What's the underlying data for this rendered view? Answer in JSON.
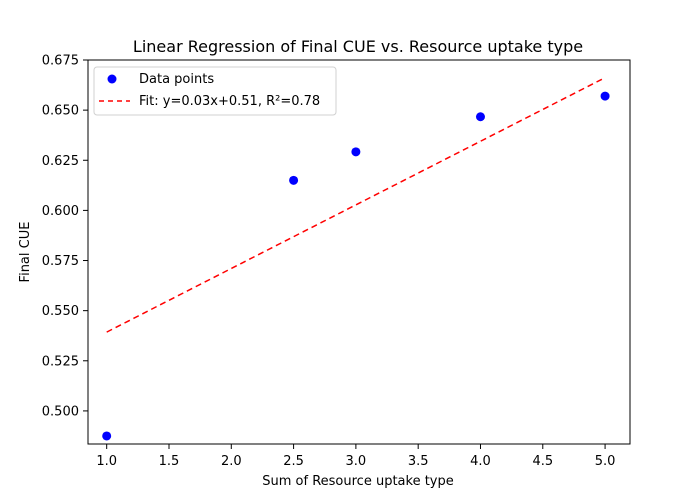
{
  "chart_data": {
    "type": "scatter",
    "title": "Linear Regression of Final CUE vs. Resource uptake type",
    "xlabel": "Sum of Resource uptake type",
    "ylabel": "Final CUE",
    "xlim": [
      0.85,
      5.2
    ],
    "ylim": [
      0.4835,
      0.675
    ],
    "xticks": [
      1.0,
      1.5,
      2.0,
      2.5,
      3.0,
      3.5,
      4.0,
      4.5,
      5.0
    ],
    "xtick_labels": [
      "1.0",
      "1.5",
      "2.0",
      "2.5",
      "3.0",
      "3.5",
      "4.0",
      "4.5",
      "5.0"
    ],
    "yticks": [
      0.5,
      0.525,
      0.55,
      0.575,
      0.6,
      0.625,
      0.65,
      0.675
    ],
    "ytick_labels": [
      "0.500",
      "0.525",
      "0.550",
      "0.575",
      "0.600",
      "0.625",
      "0.650",
      "0.675"
    ],
    "grid": false,
    "legend_placement": "top-left",
    "series": [
      {
        "name": "Data points",
        "kind": "scatter",
        "color": "#0000ff",
        "points": [
          {
            "x": 1.0,
            "y": 0.4875
          },
          {
            "x": 2.5,
            "y": 0.615
          },
          {
            "x": 3.0,
            "y": 0.6292
          },
          {
            "x": 4.0,
            "y": 0.6467
          },
          {
            "x": 5.0,
            "y": 0.657
          }
        ]
      },
      {
        "name": "Fit: y=0.03x+0.51, R²=0.78",
        "kind": "line",
        "style": "dashed",
        "color": "#ff0000",
        "points": [
          {
            "x": 1.0,
            "y": 0.5393
          },
          {
            "x": 5.0,
            "y": 0.6662
          }
        ]
      }
    ]
  }
}
